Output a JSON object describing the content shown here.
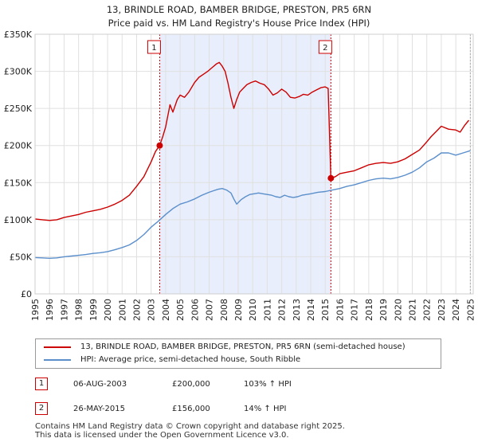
{
  "chart_data": {
    "type": "line",
    "title": "13, BRINDLE ROAD, BAMBER BRIDGE, PRESTON, PR5 6RN",
    "subtitle": "Price paid vs. HM Land Registry's House Price Index (HPI)",
    "xlabel": "",
    "ylabel": "",
    "xlim": [
      1995,
      2025.2
    ],
    "ylim": [
      0,
      350000
    ],
    "grid": true,
    "colors": {
      "property": "#cc0000",
      "hpi": "#5b8fcc",
      "shade": "#e8eefb",
      "grid": "#e0e0e0"
    },
    "x_ticks": [
      1995,
      1996,
      1997,
      1998,
      1999,
      2000,
      2001,
      2002,
      2003,
      2004,
      2005,
      2006,
      2007,
      2008,
      2009,
      2010,
      2011,
      2012,
      2013,
      2014,
      2015,
      2016,
      2017,
      2018,
      2019,
      2020,
      2021,
      2022,
      2023,
      2024,
      2025
    ],
    "x_tick_labels": [
      "1995",
      "1996",
      "1997",
      "1998",
      "1999",
      "2000",
      "2001",
      "2002",
      "2003",
      "2004",
      "2005",
      "2006",
      "2007",
      "2008",
      "2009",
      "2010",
      "2011",
      "2012",
      "2013",
      "2014",
      "2015",
      "2016",
      "2017",
      "2018",
      "2019",
      "2020",
      "2021",
      "2022",
      "2023",
      "2024",
      "2025"
    ],
    "y_ticks": [
      0,
      50000,
      100000,
      150000,
      200000,
      250000,
      300000,
      350000
    ],
    "y_tick_labels": [
      "£0",
      "£50K",
      "£100K",
      "£150K",
      "£200K",
      "£250K",
      "£300K",
      "£350K"
    ],
    "series": [
      {
        "name": "13, BRINDLE ROAD, BAMBER BRIDGE, PRESTON, PR5 6RN (semi-detached house)",
        "color": "#cc0000",
        "x": [
          1995,
          1995.5,
          1996,
          1996.5,
          1997,
          1997.5,
          1998,
          1998.5,
          1999,
          1999.5,
          2000,
          2000.5,
          2001,
          2001.5,
          2002,
          2002.5,
          2003,
          2003.3,
          2003.59,
          2003.8,
          2004,
          2004.3,
          2004.5,
          2004.8,
          2005,
          2005.3,
          2005.6,
          2006,
          2006.3,
          2006.6,
          2006.9,
          2007.2,
          2007.5,
          2007.7,
          2007.9,
          2008.1,
          2008.3,
          2008.5,
          2008.7,
          2008.9,
          2009.1,
          2009.3,
          2009.6,
          2009.9,
          2010.2,
          2010.5,
          2010.8,
          2011.1,
          2011.4,
          2011.7,
          2012,
          2012.3,
          2012.6,
          2012.9,
          2013.2,
          2013.5,
          2013.8,
          2014.1,
          2014.4,
          2014.7,
          2015,
          2015.2,
          2015.39,
          2015.7,
          2016,
          2016.5,
          2017,
          2017.5,
          2018,
          2018.5,
          2019,
          2019.5,
          2020,
          2020.5,
          2021,
          2021.5,
          2022,
          2022.3,
          2022.7,
          2023,
          2023.5,
          2024,
          2024.3,
          2024.6,
          2024.9
        ],
        "values": [
          101000,
          100000,
          99000,
          100000,
          103000,
          105000,
          107000,
          110000,
          112000,
          114000,
          117000,
          121000,
          126000,
          133000,
          145000,
          158000,
          178000,
          192000,
          200000,
          212000,
          225000,
          255000,
          245000,
          262000,
          268000,
          265000,
          272000,
          285000,
          292000,
          296000,
          300000,
          305000,
          310000,
          312000,
          307000,
          300000,
          284000,
          265000,
          250000,
          262000,
          272000,
          276000,
          282000,
          285000,
          287000,
          284000,
          282000,
          276000,
          268000,
          271000,
          276000,
          272000,
          265000,
          264000,
          266000,
          269000,
          268000,
          272000,
          275000,
          278000,
          279000,
          277000,
          156000,
          158000,
          162000,
          164000,
          166000,
          170000,
          174000,
          176000,
          177000,
          176000,
          178000,
          182000,
          188000,
          194000,
          205000,
          212000,
          220000,
          226000,
          222000,
          221000,
          218000,
          227000,
          234000
        ]
      },
      {
        "name": "HPI: Average price, semi-detached house, South Ribble",
        "color": "#5b8fcc",
        "x": [
          1995,
          1995.5,
          1996,
          1996.5,
          1997,
          1997.5,
          1998,
          1998.5,
          1999,
          1999.5,
          2000,
          2000.5,
          2001,
          2001.5,
          2002,
          2002.5,
          2003,
          2003.5,
          2004,
          2004.5,
          2005,
          2005.5,
          2006,
          2006.5,
          2007,
          2007.3,
          2007.6,
          2007.9,
          2008.2,
          2008.5,
          2008.7,
          2008.9,
          2009.2,
          2009.5,
          2009.8,
          2010.1,
          2010.4,
          2010.7,
          2011,
          2011.3,
          2011.6,
          2011.9,
          2012.2,
          2012.5,
          2012.8,
          2013.1,
          2013.4,
          2013.7,
          2014,
          2014.5,
          2015,
          2015.5,
          2016,
          2016.5,
          2017,
          2017.5,
          2018,
          2018.5,
          2019,
          2019.5,
          2020,
          2020.5,
          2021,
          2021.5,
          2022,
          2022.5,
          2023,
          2023.5,
          2024,
          2024.5,
          2025
        ],
        "values": [
          49000,
          48500,
          48000,
          48500,
          50000,
          51000,
          52000,
          53000,
          54500,
          55500,
          57000,
          59500,
          62500,
          66000,
          72000,
          80000,
          90000,
          98000,
          107000,
          115000,
          121000,
          124000,
          128000,
          133000,
          137000,
          139000,
          141000,
          142000,
          140000,
          136000,
          128000,
          121000,
          127000,
          131000,
          134000,
          135000,
          136000,
          135000,
          134000,
          133000,
          131000,
          130000,
          133000,
          131000,
          130000,
          131000,
          133000,
          134000,
          135000,
          137000,
          138000,
          140000,
          142000,
          145000,
          147000,
          150000,
          153000,
          155000,
          156000,
          155000,
          157000,
          160000,
          164000,
          170000,
          178000,
          183000,
          190000,
          190000,
          187000,
          190000,
          193000
        ]
      }
    ],
    "shade_region": [
      2003.59,
      2015.39
    ],
    "sales": [
      {
        "id": "1",
        "x": 2003.59,
        "value": 200000,
        "date": "06-AUG-2003",
        "price": "£200,000",
        "hpi": "103% ↑ HPI"
      },
      {
        "id": "2",
        "x": 2015.39,
        "value": 156000,
        "date": "26-MAY-2015",
        "price": "£156,000",
        "hpi": "14% ↑ HPI"
      }
    ]
  },
  "legend": {
    "property_label": "13, BRINDLE ROAD, BAMBER BRIDGE, PRESTON, PR5 6RN (semi-detached house)",
    "hpi_label": "HPI: Average price, semi-detached house, South Ribble"
  },
  "footer": {
    "line1": "Contains HM Land Registry data © Crown copyright and database right 2025.",
    "line2": "This data is licensed under the Open Government Licence v3.0."
  }
}
